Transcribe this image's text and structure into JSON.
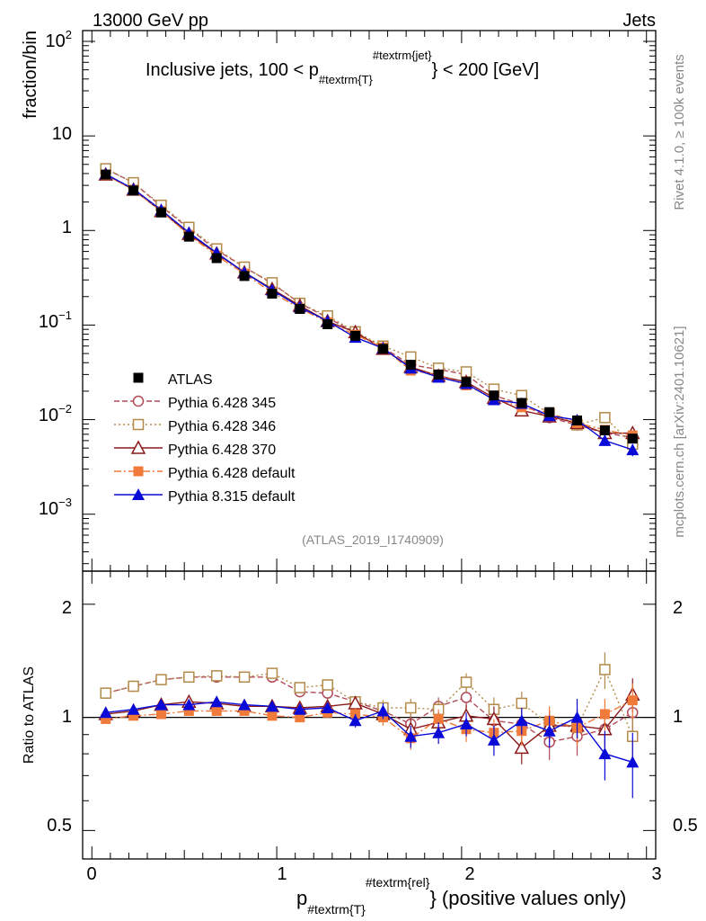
{
  "header": {
    "left": "13000 GeV pp",
    "right": "Jets"
  },
  "title": {
    "main": "Inclusive jets, 100 < p",
    "sub": "#textrm{T}",
    "sup": "#textrm{jet}",
    "tail": "} < 200 [GeV]"
  },
  "side_labels": {
    "rivet": "Rivet 4.1.0, ≥ 100k events",
    "mcplots": "mcplots.cern.ch [arXiv:2401.10621]"
  },
  "watermark": "(ATLAS_2019_I1740909)",
  "axes": {
    "upper_ylabel": "fraction/bin",
    "lower_ylabel": "Ratio to ATLAS",
    "xlabel_main": "p",
    "xlabel_sub": "#textrm{T}",
    "xlabel_sup": "#textrm{rel}",
    "xlabel_tail": "} (positive values only)",
    "x_ticks": [
      "0",
      "1",
      "2",
      "3"
    ],
    "upper_y_ticks": [
      {
        "base": "10",
        "exp": "2"
      },
      {
        "base": "10",
        "exp": ""
      },
      {
        "base": "1",
        "exp": ""
      },
      {
        "base": "10",
        "exp": "−1"
      },
      {
        "base": "10",
        "exp": "−2"
      },
      {
        "base": "10",
        "exp": "−3"
      }
    ],
    "ratio_y_ticks": [
      "2",
      "1",
      "0.5"
    ]
  },
  "chart_data": {
    "type": "line",
    "x": [
      0.075,
      0.225,
      0.375,
      0.525,
      0.675,
      0.825,
      0.975,
      1.125,
      1.275,
      1.425,
      1.575,
      1.725,
      1.875,
      2.025,
      2.175,
      2.325,
      2.475,
      2.625,
      2.775,
      2.925
    ],
    "xlim": [
      -0.05,
      3.05
    ],
    "upper": {
      "yscale": "log",
      "ylim": [
        0.00025,
        130
      ]
    },
    "ratio": {
      "yscale": "log",
      "ylim": [
        0.42,
        2.45
      ]
    },
    "series": [
      {
        "name": "ATLAS",
        "color": "#000000",
        "marker": "square-filled",
        "dash": "none",
        "values": [
          3.9,
          2.65,
          1.55,
          0.86,
          0.51,
          0.33,
          0.215,
          0.148,
          0.102,
          0.077,
          0.056,
          0.038,
          0.03,
          0.025,
          0.018,
          0.015,
          0.012,
          0.0098,
          0.0077,
          0.0063
        ],
        "errors": [
          0.04,
          0.03,
          0.02,
          0.01,
          0.008,
          0.006,
          0.005,
          0.004,
          0.003,
          0.002,
          0.002,
          0.0015,
          0.0012,
          0.001,
          0.0009,
          0.0008,
          0.0007,
          0.0006,
          0.0005,
          0.0005
        ],
        "ratio": [
          1,
          1,
          1,
          1,
          1,
          1,
          1,
          1,
          1,
          1,
          1,
          1,
          1,
          1,
          1,
          1,
          1,
          1,
          1,
          1
        ],
        "ratio_err": [
          0.01,
          0.01,
          0.01,
          0.01,
          0.015,
          0.018,
          0.022,
          0.025,
          0.03,
          0.03,
          0.035,
          0.04,
          0.04,
          0.045,
          0.05,
          0.05,
          0.06,
          0.06,
          0.07,
          0.08
        ]
      },
      {
        "name": "Pythia 6.428 345",
        "color": "#b24a5a",
        "marker": "circle-open",
        "dash": "6,3",
        "values": [
          4.5,
          3.2,
          1.8,
          1.05,
          0.62,
          0.41,
          0.275,
          0.17,
          0.12,
          0.083,
          0.058,
          0.038,
          0.034,
          0.03,
          0.018,
          0.0145,
          0.0105,
          0.0088,
          0.0072,
          0.0065
        ],
        "errors": [
          0.05,
          0.04,
          0.03,
          0.015,
          0.01,
          0.008,
          0.006,
          0.005,
          0.004,
          0.003,
          0.003,
          0.002,
          0.002,
          0.002,
          0.0015,
          0.0015,
          0.0012,
          0.0012,
          0.001,
          0.001
        ],
        "ratio": [
          1.16,
          1.21,
          1.26,
          1.28,
          1.28,
          1.28,
          1.28,
          1.17,
          1.16,
          1.1,
          1.04,
          0.96,
          1.07,
          1.13,
          0.98,
          0.96,
          0.86,
          0.89,
          0.93,
          1.03
        ],
        "ratio_err": [
          0.02,
          0.02,
          0.02,
          0.02,
          0.02,
          0.025,
          0.03,
          0.03,
          0.035,
          0.04,
          0.05,
          0.06,
          0.06,
          0.07,
          0.08,
          0.08,
          0.09,
          0.1,
          0.1,
          0.12
        ]
      },
      {
        "name": "Pythia 6.428 346",
        "color": "#b38a4a",
        "marker": "square-open",
        "dash": "2,3",
        "values": [
          4.5,
          3.2,
          1.85,
          1.08,
          0.64,
          0.41,
          0.28,
          0.17,
          0.125,
          0.085,
          0.06,
          0.046,
          0.035,
          0.032,
          0.021,
          0.018,
          0.0115,
          0.0088,
          0.0105,
          0.0055
        ],
        "errors": [
          0.05,
          0.04,
          0.03,
          0.015,
          0.01,
          0.008,
          0.006,
          0.005,
          0.004,
          0.003,
          0.003,
          0.002,
          0.002,
          0.002,
          0.0015,
          0.0015,
          0.0012,
          0.0012,
          0.001,
          0.001
        ],
        "ratio": [
          1.16,
          1.21,
          1.26,
          1.28,
          1.29,
          1.28,
          1.31,
          1.2,
          1.22,
          1.1,
          1.06,
          1.06,
          1.05,
          1.24,
          1.05,
          1.09,
          0.96,
          0.94,
          1.34,
          0.89
        ],
        "ratio_err": [
          0.02,
          0.02,
          0.02,
          0.02,
          0.02,
          0.025,
          0.03,
          0.03,
          0.035,
          0.04,
          0.05,
          0.06,
          0.06,
          0.07,
          0.08,
          0.08,
          0.09,
          0.1,
          0.15,
          0.12
        ]
      },
      {
        "name": "Pythia 6.428 370",
        "color": "#8b1a1a",
        "marker": "triangle-open",
        "dash": "none",
        "values": [
          3.9,
          2.7,
          1.6,
          0.92,
          0.57,
          0.36,
          0.24,
          0.16,
          0.11,
          0.084,
          0.056,
          0.036,
          0.029,
          0.025,
          0.017,
          0.0125,
          0.0108,
          0.0092,
          0.0072,
          0.0072
        ],
        "errors": [
          0.04,
          0.03,
          0.02,
          0.012,
          0.008,
          0.006,
          0.005,
          0.004,
          0.003,
          0.002,
          0.002,
          0.0015,
          0.0012,
          0.001,
          0.001,
          0.0009,
          0.0008,
          0.0007,
          0.0006,
          0.0007
        ],
        "ratio": [
          1.02,
          1.04,
          1.08,
          1.1,
          1.09,
          1.07,
          1.07,
          1.06,
          1.07,
          1.09,
          1.02,
          0.93,
          0.97,
          1.01,
          0.99,
          0.83,
          0.95,
          0.95,
          0.93,
          1.15
        ],
        "ratio_err": [
          0.02,
          0.02,
          0.02,
          0.02,
          0.02,
          0.025,
          0.03,
          0.03,
          0.035,
          0.04,
          0.05,
          0.06,
          0.06,
          0.07,
          0.08,
          0.08,
          0.09,
          0.1,
          0.1,
          0.12
        ]
      },
      {
        "name": "Pythia 6.428 default",
        "color": "#f07a3a",
        "marker": "square-filled",
        "dash": "8,3,2,3",
        "values": [
          3.85,
          2.7,
          1.6,
          0.9,
          0.54,
          0.35,
          0.22,
          0.15,
          0.107,
          0.079,
          0.058,
          0.033,
          0.03,
          0.023,
          0.017,
          0.0135,
          0.0118,
          0.0092,
          0.0078,
          0.0068
        ],
        "errors": [
          0.04,
          0.03,
          0.02,
          0.012,
          0.008,
          0.006,
          0.005,
          0.004,
          0.003,
          0.002,
          0.002,
          0.0015,
          0.0012,
          0.001,
          0.001,
          0.0009,
          0.0008,
          0.0007,
          0.0006,
          0.0007
        ],
        "ratio": [
          0.99,
          1.01,
          1.02,
          1.04,
          1.04,
          1.04,
          1.01,
          1.0,
          1.03,
          1.02,
          1.0,
          0.88,
          0.99,
          0.93,
          0.91,
          0.92,
          0.98,
          0.94,
          1.02,
          1.11
        ],
        "ratio_err": [
          0.02,
          0.02,
          0.02,
          0.02,
          0.02,
          0.025,
          0.03,
          0.03,
          0.035,
          0.04,
          0.05,
          0.06,
          0.06,
          0.07,
          0.08,
          0.08,
          0.09,
          0.1,
          0.1,
          0.12
        ]
      },
      {
        "name": "Pythia 8.315 default",
        "color": "#0a0ad8",
        "marker": "triangle-filled",
        "dash": "none",
        "values": [
          3.95,
          2.75,
          1.65,
          0.95,
          0.58,
          0.36,
          0.235,
          0.155,
          0.11,
          0.074,
          0.057,
          0.035,
          0.028,
          0.024,
          0.0162,
          0.0148,
          0.011,
          0.0099,
          0.006,
          0.0048
        ],
        "errors": [
          0.04,
          0.03,
          0.02,
          0.012,
          0.008,
          0.006,
          0.005,
          0.004,
          0.003,
          0.002,
          0.002,
          0.0015,
          0.0012,
          0.001,
          0.001,
          0.0009,
          0.0008,
          0.0007,
          0.0006,
          0.0007
        ],
        "ratio": [
          1.03,
          1.05,
          1.08,
          1.08,
          1.1,
          1.08,
          1.07,
          1.05,
          1.06,
          0.98,
          1.04,
          0.89,
          0.91,
          0.96,
          0.87,
          0.98,
          0.92,
          1.0,
          0.8,
          0.76
        ],
        "ratio_err": [
          0.02,
          0.02,
          0.02,
          0.02,
          0.02,
          0.025,
          0.03,
          0.03,
          0.035,
          0.04,
          0.05,
          0.06,
          0.06,
          0.07,
          0.08,
          0.08,
          0.09,
          0.12,
          0.12,
          0.15
        ]
      }
    ]
  }
}
